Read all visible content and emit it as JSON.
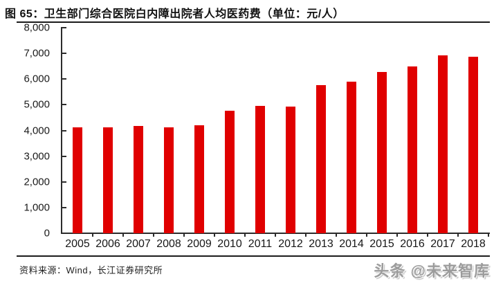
{
  "title": "图 65：卫生部门综合医院白内障出院者人均医药费（单位：元/人）",
  "chart_data": {
    "type": "bar",
    "title": "卫生部门综合医院白内障出院者人均医药费",
    "unit": "元/人",
    "categories": [
      "2005",
      "2006",
      "2007",
      "2008",
      "2009",
      "2010",
      "2011",
      "2012",
      "2013",
      "2014",
      "2015",
      "2016",
      "2017",
      "2018"
    ],
    "values": [
      4130,
      4130,
      4170,
      4110,
      4190,
      4780,
      4960,
      4930,
      5770,
      5910,
      6290,
      6500,
      6930,
      6880
    ],
    "xlabel": "",
    "ylabel": "",
    "ylim": [
      0,
      8000
    ],
    "ytick_step": 1000,
    "ytick_labels": [
      "0",
      "1,000",
      "2,000",
      "3,000",
      "4,000",
      "5,000",
      "6,000",
      "7,000",
      "8,000"
    ],
    "grid": false,
    "legend": false,
    "bar_color": "#e00000"
  },
  "footer": {
    "source": "资料来源：Wind，长江证券研究所",
    "watermark": "头条 @未来智库"
  },
  "colors": {
    "bar": "#e00000",
    "axis": "#2b2b2b",
    "text": "#1a1a1a"
  }
}
